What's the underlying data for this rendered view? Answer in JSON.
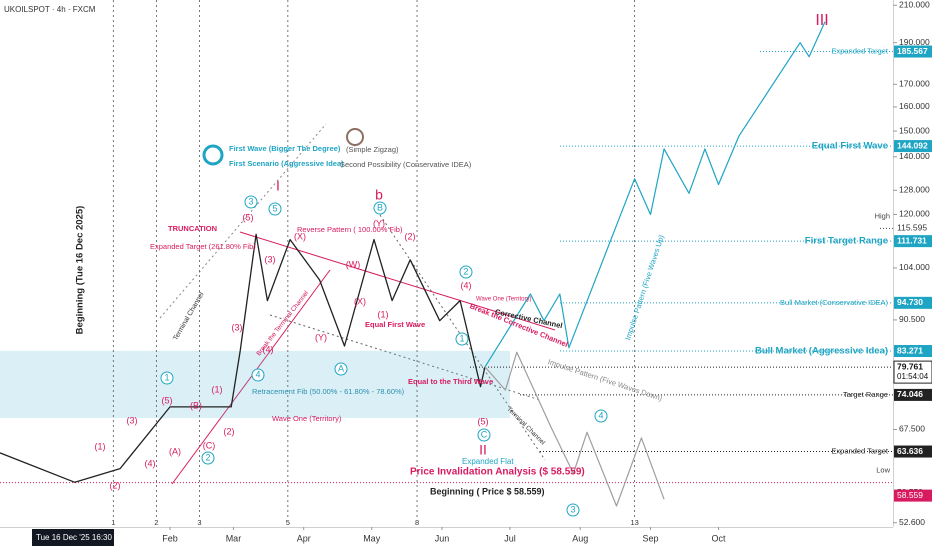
{
  "chart_data": {
    "type": "line",
    "log": true,
    "xlim": [
      -28,
      366
    ],
    "xticks": [
      {
        "value": 47,
        "label": "Feb"
      },
      {
        "value": 75,
        "label": "Mar"
      },
      {
        "value": 106,
        "label": "Apr"
      },
      {
        "value": 136,
        "label": "May"
      },
      {
        "value": 167,
        "label": "Jun"
      },
      {
        "value": 197,
        "label": "Jul"
      },
      {
        "value": 228,
        "label": "Aug"
      },
      {
        "value": 259,
        "label": "Sep"
      },
      {
        "value": 289,
        "label": "Oct"
      }
    ],
    "time_zones": [
      {
        "value": 22,
        "label": "1"
      },
      {
        "value": 41,
        "label": "2"
      },
      {
        "value": 60,
        "label": "3"
      },
      {
        "value": 99,
        "label": "5"
      },
      {
        "value": 156,
        "label": "8"
      },
      {
        "value": 252,
        "label": "13"
      }
    ],
    "x_cursor_label": "Tue 16 Dec '25   16:30",
    "ylim": [
      52.0,
      213.0
    ],
    "yticks": [
      {
        "value": 210,
        "label": "210.000"
      },
      {
        "value": 190,
        "label": "190.000"
      },
      {
        "value": 170,
        "label": "170.000"
      },
      {
        "value": 160,
        "label": "160.000"
      },
      {
        "value": 150,
        "label": "150.000"
      },
      {
        "value": 140,
        "label": "140.000"
      },
      {
        "value": 128,
        "label": "128.000"
      },
      {
        "value": 120,
        "label": "120.000"
      },
      {
        "value": 104,
        "label": "104.000"
      },
      {
        "value": 90.5,
        "label": "90.500"
      },
      {
        "value": 67.5,
        "label": "67.500"
      },
      {
        "value": 52.6,
        "label": "52.600"
      }
    ],
    "series": [
      {
        "name": "UKOILSPOT",
        "color": "#222222",
        "x": [
          -28,
          5,
          25,
          47,
          74,
          78,
          85,
          90,
          100,
          113,
          124,
          137,
          145,
          153,
          166,
          175,
          184,
          186
        ],
        "values": [
          63.4,
          58.6,
          60.8,
          71.7,
          71.7,
          83.3,
          113.8,
          95.3,
          112.2,
          100.7,
          84.4,
          112.2,
          95.3,
          106.3,
          90.3,
          95.3,
          75.7,
          79.8
        ]
      },
      {
        "name": "Impulse Pattern (Five Waves Up)",
        "color": "#1fa5c4",
        "x": [
          186,
          206,
          212,
          219,
          223,
          252,
          259,
          265,
          276,
          283,
          289,
          298,
          325,
          329,
          336
        ],
        "values": [
          79.8,
          97,
          90.3,
          97,
          84,
          132,
          120,
          143,
          127,
          143,
          130,
          148,
          190,
          183,
          201
        ]
      },
      {
        "name": "Impulse Pattern (Five Waves Down)",
        "color": "#9e9e9e",
        "x": [
          186,
          195,
          200,
          215,
          225,
          231,
          244,
          255,
          265
        ],
        "values": [
          79.8,
          75,
          83,
          68,
          60,
          67,
          55,
          66,
          56
        ]
      }
    ],
    "retracement_zone": [
      69.6,
      83.3
    ],
    "levels": [
      {
        "label": "Expanded Target",
        "value": 185.567,
        "value_label": "185.567",
        "color": "#1fa5c4"
      },
      {
        "label": "Equal First Wave",
        "value": 144.092,
        "value_label": "144.092",
        "color": "#1fa5c4"
      },
      {
        "label": "High",
        "value": 115.595,
        "value_label": "115.595",
        "color": "#444444"
      },
      {
        "label": "First Target Range",
        "value": 111.731,
        "value_label": "111.731",
        "color": "#1fa5c4"
      },
      {
        "label": "Bull Market (Conservative IDEA)",
        "value": 94.73,
        "value_label": "94.730",
        "color": "#1fa5c4"
      },
      {
        "label": "Bull Market (Aggressive Idea)",
        "value": 83.271,
        "value_label": "83.271",
        "color": "#1fa5c4"
      },
      {
        "label": "Target Range",
        "value": 74.046,
        "value_label": "74.046",
        "color": "#222222"
      },
      {
        "label": "Expanded Target",
        "value": 63.636,
        "value_label": "63.636",
        "color": "#222222"
      },
      {
        "label": "Low",
        "value": 58.559,
        "value_label": "58.559",
        "color": "#444444"
      }
    ],
    "invalidation": {
      "value": 58.559,
      "value_label": "58.559",
      "color": "#d81b60"
    },
    "current_price": {
      "value": 79.761,
      "value_label": "79.761",
      "timer": "01:54:04"
    },
    "annotations": [
      {
        "text": "UKOILSPOT · 4h · FXCM",
        "color": "#333333"
      },
      {
        "text": "Beginning (Tue 16 Dec 2025)",
        "color": "#222222"
      },
      {
        "text": "First Wave (Bigger The Degree)",
        "color": "#1fa5c4"
      },
      {
        "text": "First Scenario (Aggressive Idea)",
        "color": "#1fa5c4"
      },
      {
        "text": "(Simple Zigzag)",
        "color": "#555555"
      },
      {
        "text": "Second Possibility (Conservative IDEA)",
        "color": "#555555"
      },
      {
        "text": "TRUNCATION",
        "color": "#d81b60"
      },
      {
        "text": "Expanded Target (261.80% Fib)",
        "color": "#d81b60"
      },
      {
        "text": "Reverse Pattern ( 100.00% Fib)",
        "color": "#d81b60"
      },
      {
        "text": "Equal First Wave",
        "color": "#d81b60"
      },
      {
        "text": "Retracement Fib (50.00% - 61.80% - 78.60%)",
        "color": "#2a8fb0"
      },
      {
        "text": "Wave One (Territory)",
        "color": "#d81b60"
      },
      {
        "text": "Wave One (Territory)",
        "color": "#d81b60"
      },
      {
        "text": "Equal to the Third Wave",
        "color": "#d81b60"
      },
      {
        "text": "Corrective Channel",
        "color": "#222222"
      },
      {
        "text": "Break the Corrective Channel",
        "color": "#d81b60"
      },
      {
        "text": "Impulse Pattern (Five Waves Down)",
        "color": "#888888"
      },
      {
        "text": "Impulse Pattern (Five Waves Up)",
        "color": "#1fa5c4"
      },
      {
        "text": "Terminal Channel",
        "color": "#333333"
      },
      {
        "text": "Terminal Channel",
        "color": "#333333"
      },
      {
        "text": "Expanded Flat",
        "color": "#1fa5c4"
      },
      {
        "text": "Price Invalidation Analysis ($ 58.559)",
        "color": "#d81b60"
      },
      {
        "text": "Beginning ( Price $ 58.559)",
        "color": "#222222"
      },
      {
        "text": "Break the Terminal Channel",
        "color": "#d81b60"
      },
      {
        "text": "I",
        "color": "#d81b60"
      },
      {
        "text": "II",
        "color": "#d81b60"
      },
      {
        "text": "III",
        "color": "#d81b60"
      },
      {
        "text": "b",
        "color": "#d81b60"
      },
      {
        "text": "(1)",
        "color": "#d81b60"
      },
      {
        "text": "(2)",
        "color": "#d81b60"
      },
      {
        "text": "(3)",
        "color": "#d81b60"
      },
      {
        "text": "(4)",
        "color": "#d81b60"
      },
      {
        "text": "(5)",
        "color": "#d81b60"
      },
      {
        "text": "(A)",
        "color": "#d81b60"
      },
      {
        "text": "(B)",
        "color": "#d81b60"
      },
      {
        "text": "(C)",
        "color": "#d81b60"
      },
      {
        "text": "(1)",
        "color": "#d81b60"
      },
      {
        "text": "(2)",
        "color": "#d81b60"
      },
      {
        "text": "(3)",
        "color": "#d81b60"
      },
      {
        "text": "(4)",
        "color": "#d81b60"
      },
      {
        "text": "(5)",
        "color": "#d81b60"
      },
      {
        "text": "(X)",
        "color": "#d81b60"
      },
      {
        "text": "(W)",
        "color": "#d81b60"
      },
      {
        "text": "(Y)",
        "color": "#d81b60"
      },
      {
        "text": "(X)",
        "color": "#d81b60"
      },
      {
        "text": "(Y)",
        "color": "#d81b60"
      },
      {
        "text": "(2)",
        "color": "#d81b60"
      },
      {
        "text": "(1)",
        "color": "#d81b60"
      },
      {
        "text": "(4)",
        "color": "#d81b60"
      },
      {
        "text": "(5)",
        "color": "#d81b60"
      },
      {
        "text": "(3)",
        "color": "#d81b60"
      },
      {
        "text": "1",
        "color": "#1fa5c4"
      },
      {
        "text": "2",
        "color": "#1fa5c4"
      },
      {
        "text": "3",
        "color": "#1fa5c4"
      },
      {
        "text": "4",
        "color": "#1fa5c4"
      },
      {
        "text": "5",
        "color": "#1fa5c4"
      },
      {
        "text": "A",
        "color": "#1fa5c4"
      },
      {
        "text": "B",
        "color": "#1fa5c4"
      },
      {
        "text": "C",
        "color": "#1fa5c4"
      },
      {
        "text": "1",
        "color": "#1fa5c4"
      },
      {
        "text": "2",
        "color": "#1fa5c4"
      },
      {
        "text": "3",
        "color": "#1fa5c4"
      },
      {
        "text": "4",
        "color": "#1fa5c4"
      }
    ]
  }
}
